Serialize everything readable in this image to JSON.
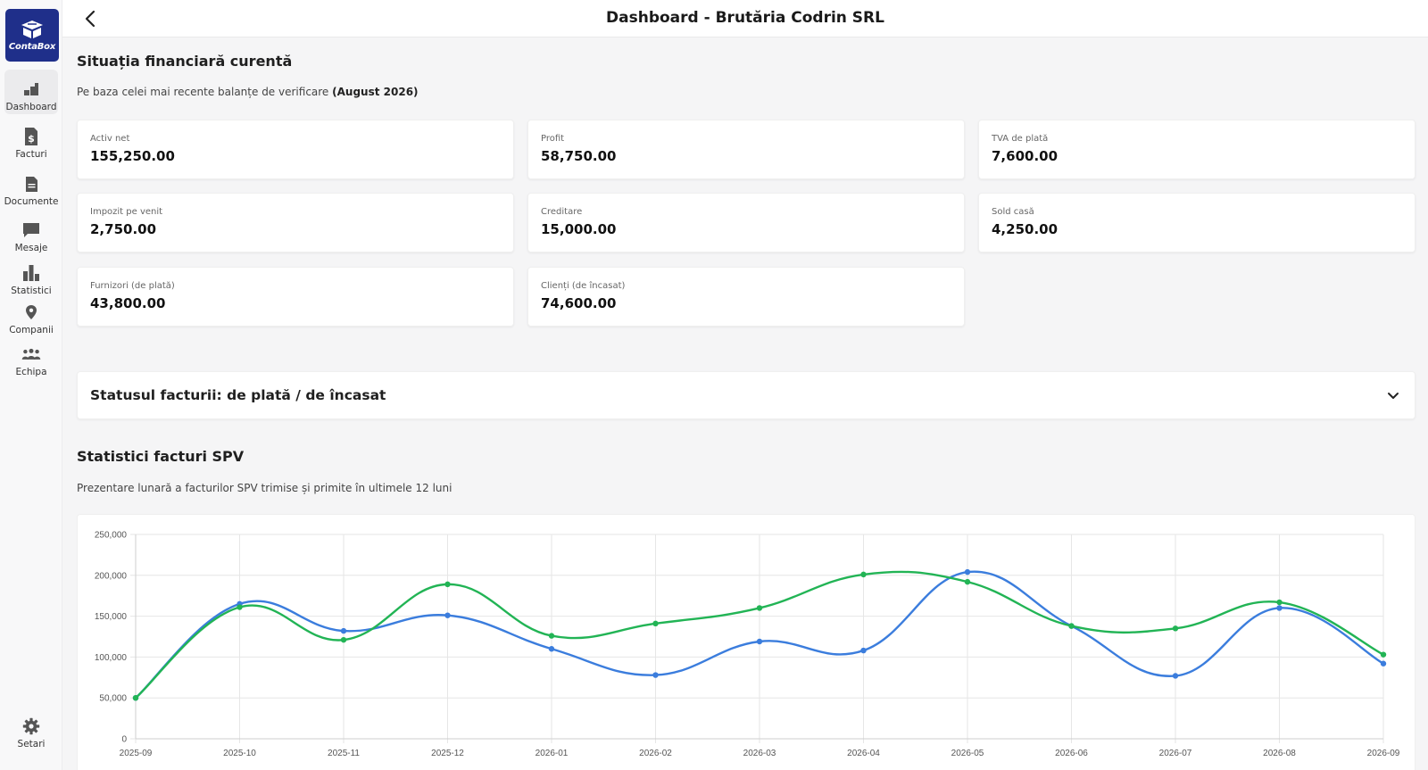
{
  "sidebar": {
    "logo_text": "ContaBox",
    "items": [
      {
        "label": "Dashboard",
        "icon": "dashboard-icon"
      },
      {
        "label": "Facturi",
        "icon": "invoice-dollar-icon"
      },
      {
        "label": "Documente",
        "icon": "document-icon"
      },
      {
        "label": "Mesaje",
        "icon": "chat-icon"
      },
      {
        "label": "Statistici",
        "icon": "bar-chart-icon"
      },
      {
        "label": "Companii",
        "icon": "map-pin-icon"
      },
      {
        "label": "Echipa",
        "icon": "team-icon"
      }
    ],
    "settings_label": "Setari"
  },
  "header": {
    "title": "Dashboard - Brutăria Codrin SRL"
  },
  "financial": {
    "title": "Situația financiară curentă",
    "subtitle_prefix": "Pe baza celei mai recente balanțe de verificare",
    "subtitle_period": "(August 2026)",
    "cards": [
      {
        "label": "Activ net",
        "value": "155,250.00"
      },
      {
        "label": "Profit",
        "value": "58,750.00"
      },
      {
        "label": "TVA de plată",
        "value": "7,600.00"
      },
      {
        "label": "Impozit pe venit",
        "value": "2,750.00"
      },
      {
        "label": "Creditare",
        "value": "15,000.00"
      },
      {
        "label": "Sold casă",
        "value": "4,250.00"
      },
      {
        "label": "Furnizori (de plată)",
        "value": "43,800.00"
      },
      {
        "label": "Clienți (de încasat)",
        "value": "74,600.00"
      }
    ]
  },
  "invoice_status": {
    "title": "Statusul facturii: de plată / de încasat"
  },
  "spv": {
    "title": "Statistici facturi SPV",
    "subtitle": "Prezentare lunară a facturilor SPV trimise și primite în ultimele 12 luni"
  },
  "colors": {
    "brand": "#1f2f8a",
    "series_blue": "#3b7ddd",
    "series_green": "#22b455"
  },
  "chart_data": {
    "type": "line",
    "x": [
      "2025-09",
      "2025-10",
      "2025-11",
      "2025-12",
      "2026-01",
      "2026-02",
      "2026-03",
      "2026-04",
      "2026-05",
      "2026-06",
      "2026-07",
      "2026-08",
      "2026-09"
    ],
    "series": [
      {
        "color": "#3b7ddd",
        "values": [
          50000,
          165000,
          132000,
          151000,
          110000,
          78000,
          119000,
          108000,
          204000,
          138000,
          77000,
          160000,
          92000
        ]
      },
      {
        "color": "#22b455",
        "values": [
          50000,
          161000,
          121000,
          189000,
          126000,
          141000,
          160000,
          201000,
          192000,
          138000,
          135000,
          167000,
          103000
        ]
      }
    ],
    "ylim": [
      0,
      250000
    ],
    "yticks": [
      "0",
      "50,000",
      "100,000",
      "150,000",
      "200,000",
      "250,000"
    ],
    "ytick_values": [
      0,
      50000,
      100000,
      150000,
      200000,
      250000
    ],
    "grid": true
  }
}
